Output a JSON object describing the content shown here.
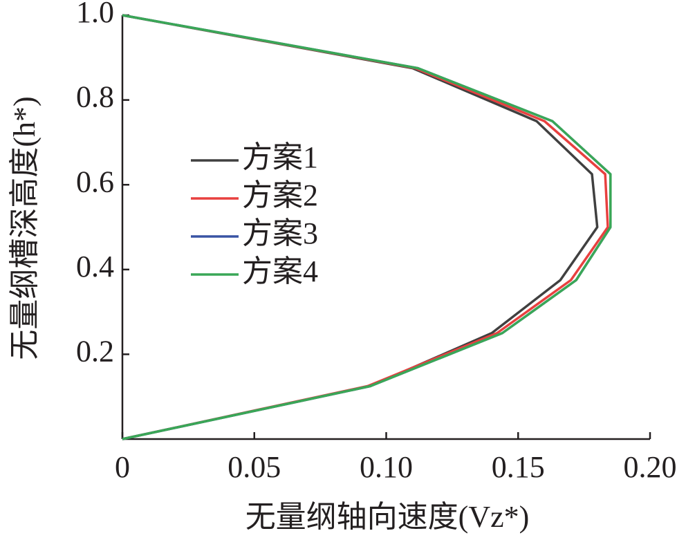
{
  "chart_data": {
    "type": "line",
    "x_label": "无量纲轴向速度(Vz*)",
    "y_label": "无量纲槽深高度(h*)",
    "y": [
      0,
      0.125,
      0.25,
      0.375,
      0.5,
      0.625,
      0.75,
      0.875,
      1.0
    ],
    "series": [
      {
        "name": "方案1",
        "color": "#404040",
        "values": [
          0,
          0.094,
          0.14,
          0.166,
          0.18,
          0.178,
          0.157,
          0.11,
          0
        ]
      },
      {
        "name": "方案2",
        "color": "#e8403f",
        "values": [
          0,
          0.093,
          0.142,
          0.17,
          0.184,
          0.183,
          0.16,
          0.111,
          0
        ]
      },
      {
        "name": "方案3",
        "color": "#3953a4",
        "values": [
          0,
          0.094,
          0.144,
          0.172,
          0.185,
          0.185,
          0.163,
          0.112,
          0
        ]
      },
      {
        "name": "方案4",
        "color": "#3aa757",
        "values": [
          0,
          0.094,
          0.144,
          0.172,
          0.185,
          0.185,
          0.163,
          0.112,
          0
        ]
      }
    ],
    "xlim": [
      0,
      0.2
    ],
    "xticks": [
      0,
      0.05,
      {
        "value": 0.1,
        "label": "0.10"
      },
      0.15,
      {
        "value": 0.2,
        "label": "0.20"
      }
    ],
    "ylim": [
      0,
      1.0
    ],
    "yticks": [
      0.2,
      0.4,
      0.6,
      0.8,
      {
        "value": 1.0,
        "label": "1.0"
      }
    ]
  }
}
